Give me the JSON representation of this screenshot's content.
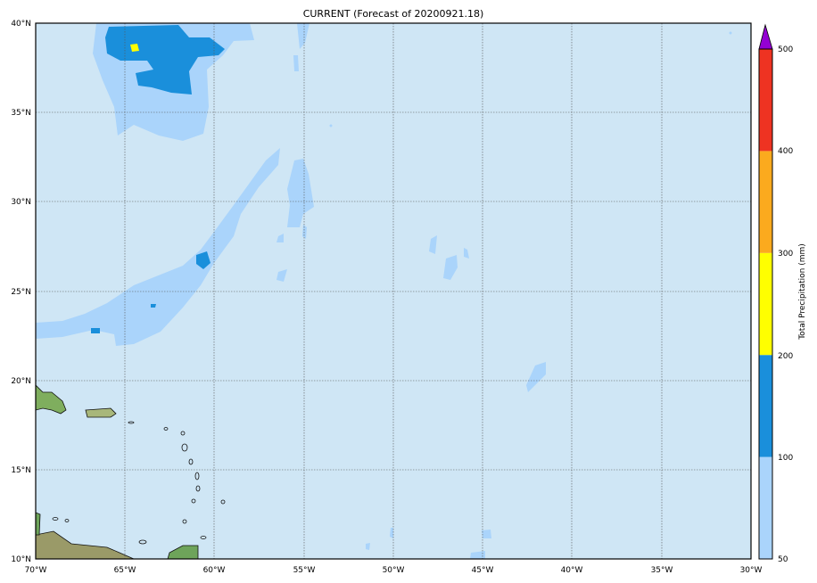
{
  "title": "CURRENT (Forecast of 20200921.18)",
  "map": {
    "lon_range": [
      -70,
      -30
    ],
    "lat_range": [
      10,
      40
    ],
    "x_ticks": [
      "70°W",
      "65°W",
      "60°W",
      "55°W",
      "50°W",
      "45°W",
      "40°W",
      "35°W",
      "30°W"
    ],
    "y_ticks": [
      "10°N",
      "15°N",
      "20°N",
      "25°N",
      "30°N",
      "35°N",
      "40°N"
    ],
    "ocean_color": "#cfe6f5",
    "gridlines": true
  },
  "colorbar": {
    "label": "Total Precipitation (mm)",
    "ticks": [
      "50",
      "100",
      "200",
      "300",
      "400",
      "500"
    ],
    "bins": [
      {
        "from": 50,
        "to": 100,
        "color": "#aad4fb"
      },
      {
        "from": 100,
        "to": 200,
        "color": "#1a8fdb"
      },
      {
        "from": 200,
        "to": 300,
        "color": "#ffff00"
      },
      {
        "from": 300,
        "to": 400,
        "color": "#fbaa1e"
      },
      {
        "from": 400,
        "to": 500,
        "color": "#ee3322"
      }
    ],
    "extend_color": "#9400d3"
  }
}
